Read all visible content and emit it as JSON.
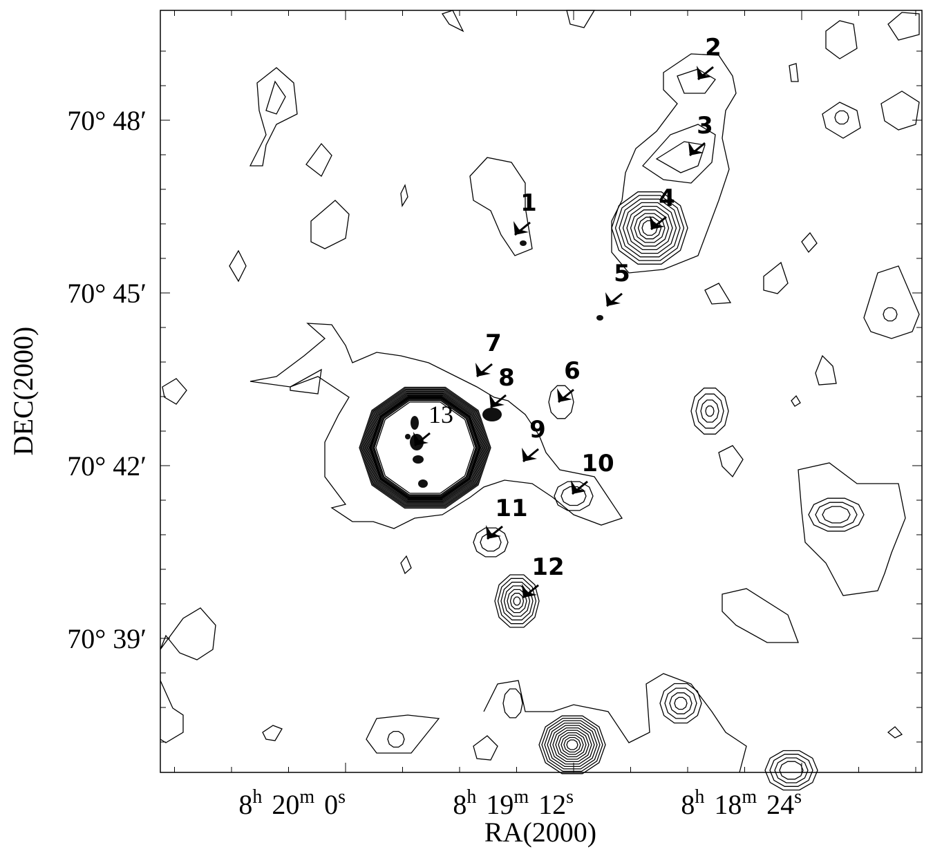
{
  "axes": {
    "x_title": "RA(2000)",
    "y_title": "DEC(2000)"
  },
  "y_tick_labels": [
    "70° 48′",
    "70° 45′",
    "70° 42′",
    "70° 39′"
  ],
  "unit_symbols": {
    "hours": "h",
    "minutes": "m",
    "seconds": "s"
  },
  "x_tick_labels": [
    {
      "hours": "8",
      "minutes": "20",
      "seconds": "0"
    },
    {
      "hours": "8",
      "minutes": "19",
      "seconds": "12"
    },
    {
      "hours": "8",
      "minutes": "18",
      "seconds": "24"
    }
  ],
  "sources": [
    {
      "label": "1"
    },
    {
      "label": "2"
    },
    {
      "label": "3"
    },
    {
      "label": "4"
    },
    {
      "label": "5"
    },
    {
      "label": "6"
    },
    {
      "label": "7"
    },
    {
      "label": "8"
    },
    {
      "label": "9"
    },
    {
      "label": "10"
    },
    {
      "label": "11"
    },
    {
      "label": "12"
    },
    {
      "label": "13"
    }
  ]
}
